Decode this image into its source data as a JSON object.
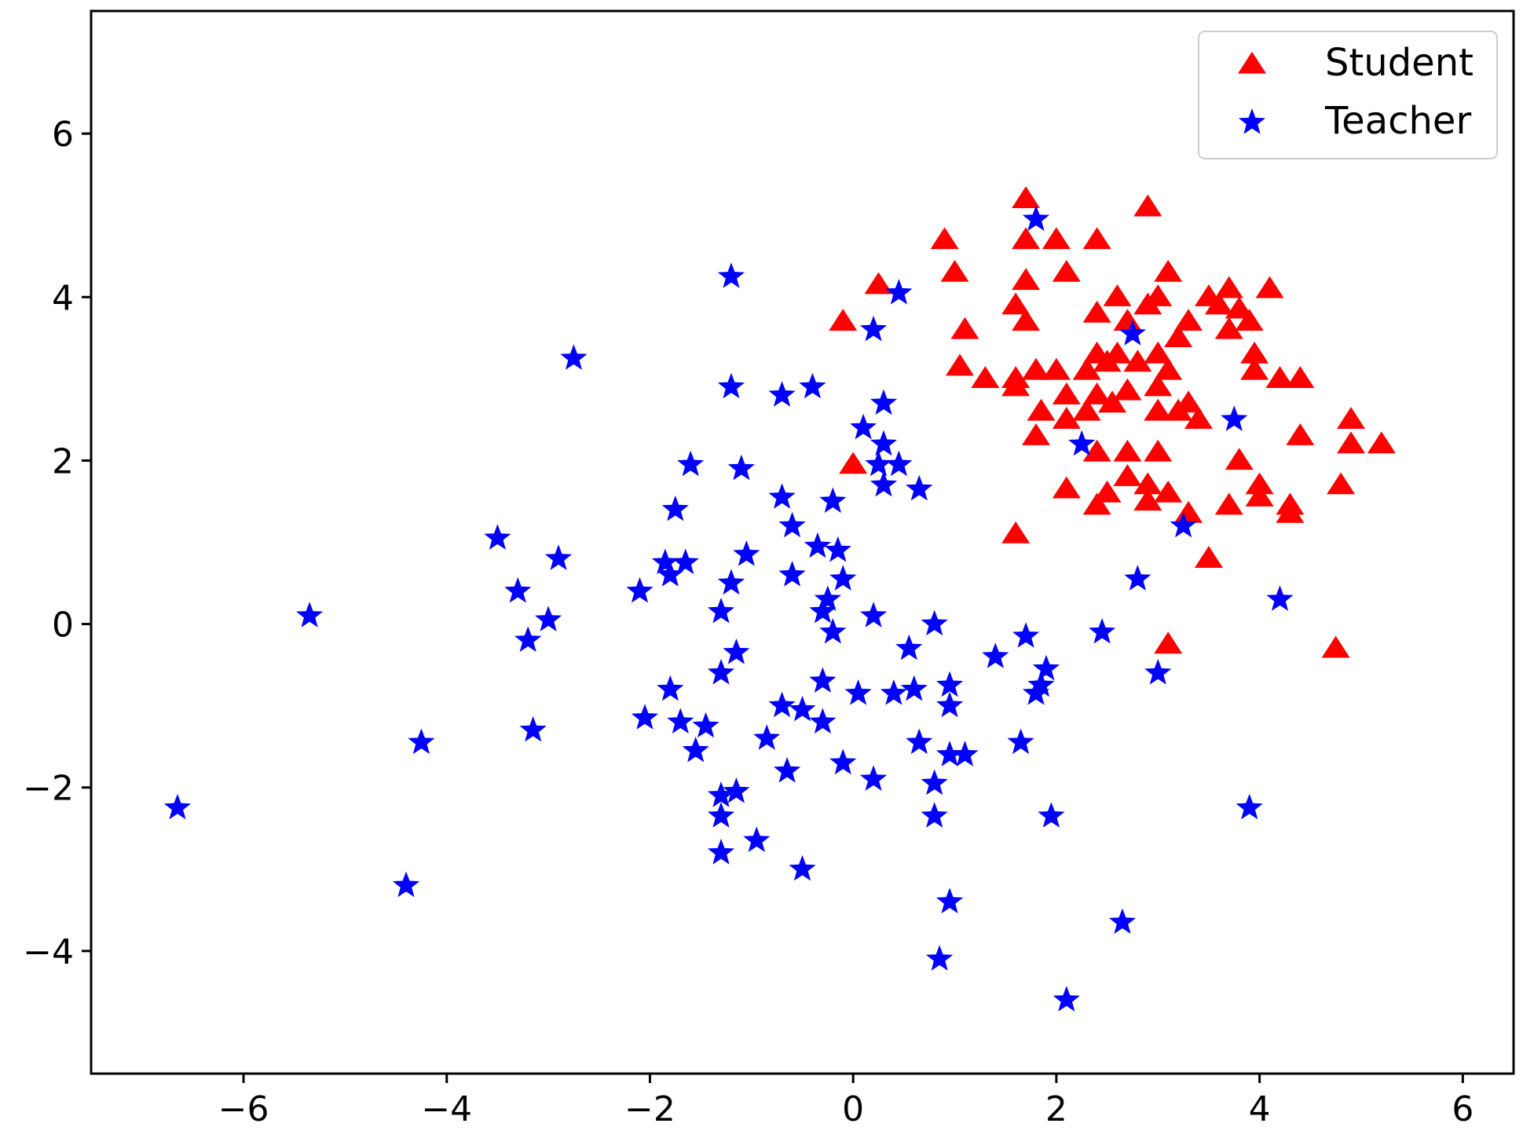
{
  "chart_data": {
    "type": "scatter",
    "title": "",
    "xlabel": "",
    "ylabel": "",
    "xlim": [
      -7.5,
      6.5
    ],
    "ylim": [
      -5.5,
      7.5
    ],
    "xticks": [
      -6,
      -4,
      -2,
      0,
      2,
      4,
      6
    ],
    "yticks": [
      -4,
      -2,
      0,
      2,
      4,
      6
    ],
    "xtick_labels": [
      "−6",
      "−4",
      "−2",
      "0",
      "2",
      "4",
      "6"
    ],
    "ytick_labels": [
      "−4",
      "−2",
      "0",
      "2",
      "4",
      "6"
    ],
    "grid": false,
    "legend_position": "top-right",
    "series": [
      {
        "name": "Student",
        "marker": "triangle",
        "color": "#ff0000",
        "points": [
          [
            1.7,
            5.2
          ],
          [
            2.9,
            5.1
          ],
          [
            0.9,
            4.7
          ],
          [
            1.7,
            4.7
          ],
          [
            2.0,
            4.7
          ],
          [
            2.4,
            4.7
          ],
          [
            1.0,
            4.3
          ],
          [
            1.7,
            4.2
          ],
          [
            2.1,
            4.3
          ],
          [
            3.1,
            4.3
          ],
          [
            3.7,
            4.1
          ],
          [
            4.1,
            4.1
          ],
          [
            0.25,
            4.15
          ],
          [
            2.6,
            4.0
          ],
          [
            3.0,
            4.0
          ],
          [
            1.6,
            3.9
          ],
          [
            2.9,
            3.9
          ],
          [
            3.5,
            4.0
          ],
          [
            3.6,
            3.9
          ],
          [
            3.8,
            3.85
          ],
          [
            -0.1,
            3.7
          ],
          [
            1.7,
            3.7
          ],
          [
            2.4,
            3.8
          ],
          [
            2.7,
            3.7
          ],
          [
            3.3,
            3.7
          ],
          [
            3.7,
            3.6
          ],
          [
            3.9,
            3.7
          ],
          [
            1.1,
            3.6
          ],
          [
            3.2,
            3.5
          ],
          [
            2.4,
            3.3
          ],
          [
            2.6,
            3.3
          ],
          [
            3.0,
            3.3
          ],
          [
            3.95,
            3.3
          ],
          [
            1.05,
            3.15
          ],
          [
            1.3,
            3.0
          ],
          [
            1.6,
            3.0
          ],
          [
            1.8,
            3.1
          ],
          [
            2.0,
            3.1
          ],
          [
            2.3,
            3.1
          ],
          [
            2.5,
            3.2
          ],
          [
            2.8,
            3.2
          ],
          [
            3.1,
            3.1
          ],
          [
            3.95,
            3.1
          ],
          [
            4.2,
            3.0
          ],
          [
            4.4,
            3.0
          ],
          [
            1.6,
            2.9
          ],
          [
            2.4,
            2.8
          ],
          [
            2.7,
            2.85
          ],
          [
            3.0,
            2.9
          ],
          [
            1.85,
            2.6
          ],
          [
            2.1,
            2.8
          ],
          [
            2.3,
            2.6
          ],
          [
            2.55,
            2.7
          ],
          [
            3.0,
            2.6
          ],
          [
            3.3,
            2.7
          ],
          [
            1.8,
            2.3
          ],
          [
            2.1,
            2.5
          ],
          [
            3.2,
            2.6
          ],
          [
            3.4,
            2.5
          ],
          [
            4.9,
            2.5
          ],
          [
            4.4,
            2.3
          ],
          [
            4.9,
            2.2
          ],
          [
            5.2,
            2.2
          ],
          [
            2.4,
            2.1
          ],
          [
            2.7,
            2.1
          ],
          [
            3.0,
            2.1
          ],
          [
            3.8,
            2.0
          ],
          [
            0.0,
            1.95
          ],
          [
            2.7,
            1.8
          ],
          [
            2.9,
            1.7
          ],
          [
            4.0,
            1.7
          ],
          [
            4.8,
            1.7
          ],
          [
            2.1,
            1.65
          ],
          [
            2.5,
            1.6
          ],
          [
            3.1,
            1.6
          ],
          [
            2.4,
            1.45
          ],
          [
            2.9,
            1.5
          ],
          [
            3.7,
            1.45
          ],
          [
            4.0,
            1.55
          ],
          [
            4.3,
            1.45
          ],
          [
            4.3,
            1.35
          ],
          [
            3.3,
            1.35
          ],
          [
            1.6,
            1.1
          ],
          [
            3.5,
            0.8
          ],
          [
            3.1,
            -0.25
          ],
          [
            4.75,
            -0.3
          ]
        ]
      },
      {
        "name": "Teacher",
        "marker": "star",
        "color": "#0000ff",
        "points": [
          [
            1.8,
            4.95
          ],
          [
            -1.2,
            4.25
          ],
          [
            0.45,
            4.05
          ],
          [
            0.2,
            3.6
          ],
          [
            2.75,
            3.55
          ],
          [
            -2.75,
            3.25
          ],
          [
            -1.2,
            2.9
          ],
          [
            -0.7,
            2.8
          ],
          [
            -0.4,
            2.9
          ],
          [
            0.3,
            2.7
          ],
          [
            3.75,
            2.5
          ],
          [
            0.1,
            2.4
          ],
          [
            0.3,
            2.2
          ],
          [
            2.25,
            2.2
          ],
          [
            -1.6,
            1.95
          ],
          [
            0.25,
            1.95
          ],
          [
            0.45,
            1.95
          ],
          [
            -1.1,
            1.9
          ],
          [
            0.3,
            1.7
          ],
          [
            0.65,
            1.65
          ],
          [
            -0.7,
            1.55
          ],
          [
            -0.2,
            1.5
          ],
          [
            -1.75,
            1.4
          ],
          [
            3.25,
            1.2
          ],
          [
            -0.6,
            1.2
          ],
          [
            -3.5,
            1.05
          ],
          [
            -0.35,
            0.95
          ],
          [
            -0.15,
            0.9
          ],
          [
            -1.05,
            0.85
          ],
          [
            -2.9,
            0.8
          ],
          [
            -1.85,
            0.75
          ],
          [
            -1.65,
            0.75
          ],
          [
            -1.8,
            0.6
          ],
          [
            -0.6,
            0.6
          ],
          [
            -0.1,
            0.55
          ],
          [
            2.8,
            0.55
          ],
          [
            -1.2,
            0.5
          ],
          [
            -2.1,
            0.4
          ],
          [
            -3.3,
            0.4
          ],
          [
            4.2,
            0.3
          ],
          [
            -0.25,
            0.3
          ],
          [
            -5.35,
            0.1
          ],
          [
            -1.3,
            0.15
          ],
          [
            -0.3,
            0.15
          ],
          [
            0.2,
            0.1
          ],
          [
            -3.0,
            0.05
          ],
          [
            0.8,
            0.0
          ],
          [
            -0.2,
            -0.1
          ],
          [
            2.45,
            -0.1
          ],
          [
            -3.2,
            -0.2
          ],
          [
            1.7,
            -0.15
          ],
          [
            0.55,
            -0.3
          ],
          [
            -1.15,
            -0.35
          ],
          [
            1.4,
            -0.4
          ],
          [
            3.0,
            -0.6
          ],
          [
            1.9,
            -0.55
          ],
          [
            -1.3,
            -0.6
          ],
          [
            -0.3,
            -0.7
          ],
          [
            0.95,
            -0.75
          ],
          [
            1.85,
            -0.75
          ],
          [
            -1.8,
            -0.8
          ],
          [
            0.05,
            -0.85
          ],
          [
            0.4,
            -0.85
          ],
          [
            0.6,
            -0.8
          ],
          [
            1.8,
            -0.85
          ],
          [
            0.95,
            -1.0
          ],
          [
            -0.7,
            -1.0
          ],
          [
            -0.5,
            -1.05
          ],
          [
            -2.05,
            -1.15
          ],
          [
            -1.7,
            -1.2
          ],
          [
            -0.3,
            -1.2
          ],
          [
            -1.45,
            -1.25
          ],
          [
            -3.15,
            -1.3
          ],
          [
            -0.85,
            -1.4
          ],
          [
            -4.25,
            -1.45
          ],
          [
            0.65,
            -1.45
          ],
          [
            1.65,
            -1.45
          ],
          [
            -1.55,
            -1.55
          ],
          [
            0.95,
            -1.6
          ],
          [
            1.1,
            -1.6
          ],
          [
            -0.1,
            -1.7
          ],
          [
            -0.65,
            -1.8
          ],
          [
            0.2,
            -1.9
          ],
          [
            0.8,
            -1.95
          ],
          [
            -1.15,
            -2.05
          ],
          [
            -1.3,
            -2.1
          ],
          [
            -6.65,
            -2.25
          ],
          [
            3.9,
            -2.25
          ],
          [
            -1.3,
            -2.35
          ],
          [
            0.8,
            -2.35
          ],
          [
            1.95,
            -2.35
          ],
          [
            -0.95,
            -2.65
          ],
          [
            -1.3,
            -2.8
          ],
          [
            -0.5,
            -3.0
          ],
          [
            -4.4,
            -3.2
          ],
          [
            0.95,
            -3.4
          ],
          [
            2.65,
            -3.65
          ],
          [
            0.85,
            -4.1
          ],
          [
            2.1,
            -4.6
          ]
        ]
      }
    ]
  }
}
